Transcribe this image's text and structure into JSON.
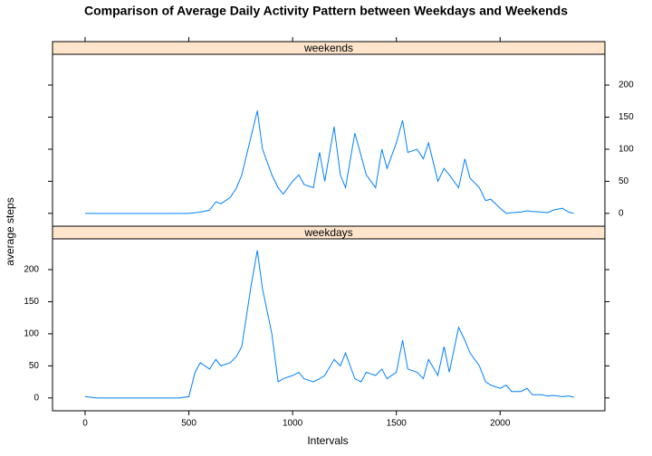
{
  "chart_data": {
    "type": "line",
    "title": "Comparison of Average Daily Activity Pattern between Weekdays and Weekends",
    "x_label": "Intervals",
    "y_label": "average steps",
    "x": [
      0,
      30,
      55,
      100,
      130,
      155,
      200,
      230,
      255,
      300,
      330,
      355,
      400,
      430,
      455,
      500,
      530,
      555,
      600,
      630,
      655,
      700,
      730,
      755,
      800,
      830,
      855,
      900,
      930,
      955,
      1000,
      1030,
      1055,
      1100,
      1130,
      1155,
      1200,
      1230,
      1255,
      1300,
      1330,
      1355,
      1400,
      1430,
      1455,
      1500,
      1530,
      1555,
      1600,
      1630,
      1655,
      1700,
      1730,
      1755,
      1800,
      1830,
      1855,
      1900,
      1930,
      1955,
      2000,
      2030,
      2055,
      2100,
      2130,
      2155,
      2200,
      2230,
      2255,
      2300,
      2330,
      2355
    ],
    "xlim": [
      -157,
      2505
    ],
    "xticks": [
      0,
      500,
      1000,
      1500,
      2000
    ],
    "ylim": [
      -20,
      248
    ],
    "yticks": [
      0,
      50,
      100,
      150,
      200
    ],
    "strip_color": "#ffe5cc",
    "series": [
      {
        "name": "weekends",
        "color": "#0080ff",
        "values": [
          0,
          0,
          0,
          0,
          0,
          0,
          0,
          0,
          0,
          0,
          0,
          0,
          0,
          0,
          0,
          0,
          1,
          2,
          5,
          18,
          15,
          25,
          40,
          60,
          120,
          160,
          100,
          60,
          40,
          30,
          50,
          60,
          45,
          40,
          95,
          50,
          135,
          60,
          40,
          125,
          90,
          60,
          40,
          100,
          70,
          110,
          145,
          95,
          100,
          85,
          110,
          50,
          70,
          60,
          40,
          85,
          55,
          40,
          20,
          22,
          8,
          0,
          1,
          2,
          4,
          3,
          2,
          1,
          5,
          8,
          2,
          0
        ]
      },
      {
        "name": "weekdays",
        "color": "#0080ff",
        "values": [
          2,
          1,
          0,
          0,
          0,
          0,
          0,
          0,
          0,
          0,
          0,
          0,
          0,
          0,
          0,
          2,
          40,
          55,
          45,
          60,
          50,
          55,
          65,
          80,
          175,
          230,
          170,
          100,
          25,
          30,
          35,
          40,
          30,
          25,
          30,
          35,
          60,
          50,
          70,
          30,
          25,
          40,
          35,
          45,
          30,
          40,
          90,
          45,
          40,
          30,
          60,
          35,
          80,
          40,
          110,
          90,
          70,
          50,
          25,
          20,
          15,
          20,
          10,
          10,
          15,
          5,
          5,
          3,
          4,
          2,
          3,
          1
        ]
      }
    ]
  }
}
